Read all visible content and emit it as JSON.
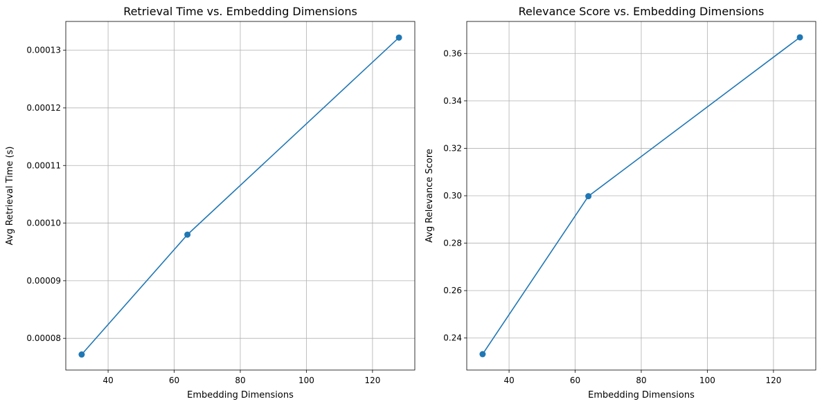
{
  "chart_data": [
    {
      "type": "line",
      "title": "Retrieval Time vs. Embedding Dimensions",
      "xlabel": "Embedding Dimensions",
      "ylabel": "Avg Retrieval Time (s)",
      "x": [
        32,
        64,
        128
      ],
      "series": [
        {
          "values": [
            7.72e-05,
            9.8e-05,
            0.0001322
          ]
        }
      ],
      "xlim": [
        27.2,
        132.8
      ],
      "ylim": [
        7.45e-05,
        0.000135
      ],
      "xticks": [
        40,
        60,
        80,
        100,
        120
      ],
      "xtick_labels": [
        "40",
        "60",
        "80",
        "100",
        "120"
      ],
      "yticks": [
        8e-05,
        9e-05,
        0.0001,
        0.00011,
        0.00012,
        0.00013
      ],
      "ytick_labels": [
        "0.00008",
        "0.00009",
        "0.00010",
        "0.00011",
        "0.00012",
        "0.00013"
      ],
      "grid": true,
      "marker": "circle",
      "color": "#1f77b4"
    },
    {
      "type": "line",
      "title": "Relevance Score vs. Embedding Dimensions",
      "xlabel": "Embedding Dimensions",
      "ylabel": "Avg Relevance Score",
      "x": [
        32,
        64,
        128
      ],
      "series": [
        {
          "values": [
            0.2332,
            0.2998,
            0.3668
          ]
        }
      ],
      "xlim": [
        27.2,
        132.8
      ],
      "ylim": [
        0.2265,
        0.3735
      ],
      "xticks": [
        40,
        60,
        80,
        100,
        120
      ],
      "xtick_labels": [
        "40",
        "60",
        "80",
        "100",
        "120"
      ],
      "yticks": [
        0.24,
        0.26,
        0.28,
        0.3,
        0.32,
        0.34,
        0.36
      ],
      "ytick_labels": [
        "0.24",
        "0.26",
        "0.28",
        "0.30",
        "0.32",
        "0.34",
        "0.36"
      ],
      "grid": true,
      "marker": "circle",
      "color": "#1f77b4"
    }
  ]
}
